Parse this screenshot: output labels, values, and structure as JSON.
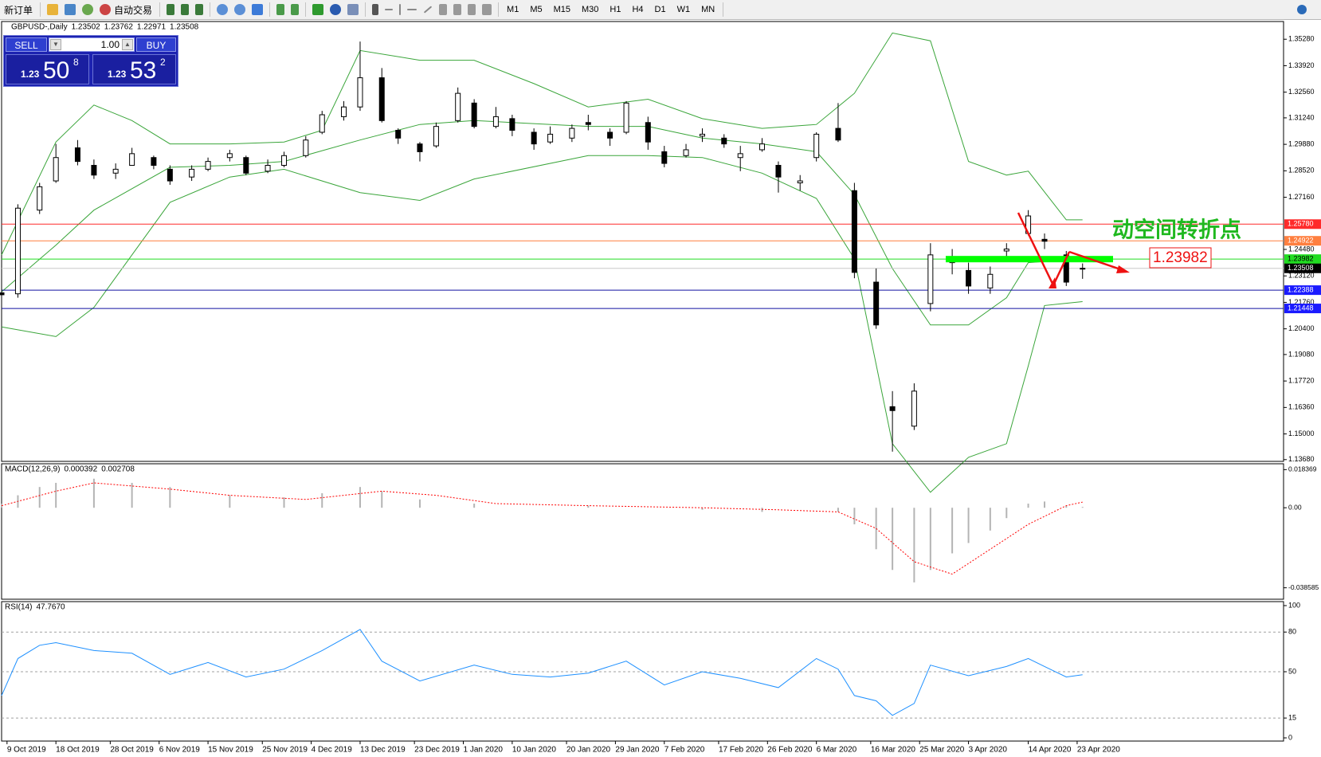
{
  "toolbar": {
    "new_order": "新订单",
    "auto_trading": "自动交易",
    "timeframes": [
      "M1",
      "M5",
      "M15",
      "M30",
      "H1",
      "H4",
      "D1",
      "W1",
      "MN"
    ]
  },
  "trade_panel": {
    "sell": "SELL",
    "lot": "1.00",
    "buy": "BUY",
    "sell_price": {
      "prefix": "1.23",
      "big": "50",
      "pip": "8"
    },
    "buy_price": {
      "prefix": "1.23",
      "big": "53",
      "pip": "2"
    }
  },
  "chart_data": [
    {
      "type": "candlestick",
      "title": "GBPUSD-,Daily",
      "header_values": [
        1.23502,
        1.23762,
        1.22971,
        1.23508
      ],
      "xlim": [
        "2019-10-08",
        "2020-05-31"
      ],
      "ylim": [
        1.1359,
        1.3619
      ],
      "yticks": [
        {
          "value": 1.3528,
          "label": "1.35280"
        },
        {
          "value": 1.3392,
          "label": "1.33920"
        },
        {
          "value": 1.3256,
          "label": "1.32560"
        },
        {
          "value": 1.3124,
          "label": "1.31240"
        },
        {
          "value": 1.2988,
          "label": "1.29880"
        },
        {
          "value": 1.2852,
          "label": "1.28520"
        },
        {
          "value": 1.2716,
          "label": "1.27160"
        },
        {
          "value": 1.2448,
          "label": "1.24480"
        },
        {
          "value": 1.2312,
          "label": "1.23120"
        },
        {
          "value": 1.2176,
          "label": "1.21760"
        },
        {
          "value": 1.204,
          "label": "1.20400"
        },
        {
          "value": 1.1908,
          "label": "1.19080"
        },
        {
          "value": 1.1772,
          "label": "1.17720"
        },
        {
          "value": 1.1636,
          "label": "1.16360"
        },
        {
          "value": 1.15,
          "label": "1.15000"
        },
        {
          "value": 1.1368,
          "label": "1.13680"
        }
      ],
      "x": [
        "2019-10-08",
        "2019-10-11",
        "2019-10-15",
        "2019-10-18",
        "2019-10-22",
        "2019-10-25",
        "2019-10-29",
        "2019-11-01",
        "2019-11-05",
        "2019-11-08",
        "2019-11-12",
        "2019-11-15",
        "2019-11-19",
        "2019-11-22",
        "2019-11-26",
        "2019-11-29",
        "2019-12-03",
        "2019-12-06",
        "2019-12-10",
        "2019-12-13",
        "2019-12-17",
        "2019-12-20",
        "2019-12-24",
        "2019-12-27",
        "2019-12-31",
        "2020-01-03",
        "2020-01-07",
        "2020-01-10",
        "2020-01-14",
        "2020-01-17",
        "2020-01-21",
        "2020-01-24",
        "2020-01-28",
        "2020-01-31",
        "2020-02-04",
        "2020-02-07",
        "2020-02-11",
        "2020-02-14",
        "2020-02-18",
        "2020-02-21",
        "2020-02-25",
        "2020-02-28",
        "2020-03-03",
        "2020-03-06",
        "2020-03-10",
        "2020-03-13",
        "2020-03-17",
        "2020-03-20",
        "2020-03-24",
        "2020-03-27",
        "2020-03-31",
        "2020-04-03",
        "2020-04-07",
        "2020-04-10",
        "2020-04-14",
        "2020-04-17",
        "2020-04-21",
        "2020-04-24"
      ],
      "open": [
        1.2225,
        1.222,
        1.265,
        1.28,
        1.297,
        1.288,
        1.284,
        1.288,
        1.292,
        1.286,
        1.282,
        1.286,
        1.292,
        1.292,
        1.285,
        1.288,
        1.293,
        1.305,
        1.313,
        1.318,
        1.333,
        1.306,
        1.299,
        1.298,
        1.311,
        1.32,
        1.308,
        1.312,
        1.305,
        1.3,
        1.302,
        1.31,
        1.305,
        1.305,
        1.31,
        1.295,
        1.293,
        1.303,
        1.302,
        1.292,
        1.296,
        1.288,
        1.279,
        1.292,
        1.307,
        1.275,
        1.228,
        1.164,
        1.154,
        1.217,
        1.238,
        1.234,
        1.225,
        1.244,
        1.253,
        1.25,
        1.242,
        1.235
      ],
      "high": [
        1.226,
        1.268,
        1.279,
        1.299,
        1.301,
        1.291,
        1.289,
        1.297,
        1.293,
        1.288,
        1.288,
        1.292,
        1.296,
        1.293,
        1.291,
        1.295,
        1.303,
        1.316,
        1.321,
        1.3516,
        1.338,
        1.307,
        1.3,
        1.31,
        1.328,
        1.322,
        1.318,
        1.314,
        1.307,
        1.308,
        1.309,
        1.314,
        1.307,
        1.321,
        1.313,
        1.298,
        1.299,
        1.307,
        1.304,
        1.298,
        1.302,
        1.29,
        1.283,
        1.305,
        1.32,
        1.279,
        1.235,
        1.172,
        1.176,
        1.248,
        1.245,
        1.238,
        1.236,
        1.248,
        1.265,
        1.253,
        1.244,
        1.2376
      ],
      "low": [
        1.22,
        1.22,
        1.263,
        1.279,
        1.288,
        1.281,
        1.281,
        1.288,
        1.286,
        1.278,
        1.28,
        1.285,
        1.29,
        1.283,
        1.284,
        1.287,
        1.292,
        1.304,
        1.311,
        1.316,
        1.31,
        1.299,
        1.29,
        1.297,
        1.31,
        1.307,
        1.307,
        1.303,
        1.296,
        1.299,
        1.3,
        1.306,
        1.298,
        1.304,
        1.296,
        1.287,
        1.292,
        1.3,
        1.297,
        1.285,
        1.295,
        1.274,
        1.275,
        1.29,
        1.3,
        1.23,
        1.204,
        1.1409,
        1.152,
        1.213,
        1.232,
        1.222,
        1.222,
        1.241,
        1.252,
        1.245,
        1.226,
        1.2297
      ],
      "close": [
        1.2215,
        1.266,
        1.277,
        1.292,
        1.29,
        1.283,
        1.286,
        1.294,
        1.288,
        1.28,
        1.286,
        1.29,
        1.294,
        1.284,
        1.288,
        1.293,
        1.301,
        1.314,
        1.318,
        1.333,
        1.311,
        1.302,
        1.295,
        1.308,
        1.325,
        1.308,
        1.313,
        1.306,
        1.299,
        1.304,
        1.307,
        1.309,
        1.302,
        1.32,
        1.3,
        1.289,
        1.296,
        1.304,
        1.299,
        1.294,
        1.299,
        1.282,
        1.28,
        1.304,
        1.301,
        1.233,
        1.206,
        1.162,
        1.172,
        1.242,
        1.241,
        1.226,
        1.232,
        1.245,
        1.262,
        1.249,
        1.228,
        1.2351
      ],
      "bands": [
        {
          "color": "#3aa53a",
          "x": [
            "2019-10-08",
            "2019-10-18",
            "2019-10-25",
            "2019-11-01",
            "2019-11-08",
            "2019-11-19",
            "2019-11-29",
            "2019-12-06",
            "2019-12-13",
            "2019-12-24",
            "2020-01-03",
            "2020-01-14",
            "2020-01-24",
            "2020-02-04",
            "2020-02-14",
            "2020-02-25",
            "2020-03-06",
            "2020-03-13",
            "2020-03-20",
            "2020-03-27",
            "2020-04-03",
            "2020-04-10",
            "2020-04-14",
            "2020-04-21",
            "2020-04-24"
          ],
          "values": [
            1.242,
            1.3,
            1.319,
            1.311,
            1.299,
            1.299,
            1.3,
            1.306,
            1.347,
            1.342,
            1.342,
            1.33,
            1.318,
            1.322,
            1.312,
            1.307,
            1.309,
            1.325,
            1.356,
            1.352,
            1.29,
            1.283,
            1.285,
            1.26,
            1.26
          ]
        },
        {
          "color": "#3aa53a",
          "x": [
            "2019-10-08",
            "2019-10-18",
            "2019-10-25",
            "2019-11-08",
            "2019-11-19",
            "2019-11-29",
            "2019-12-13",
            "2019-12-24",
            "2020-01-03",
            "2020-01-24",
            "2020-02-04",
            "2020-02-14",
            "2020-02-25",
            "2020-03-06",
            "2020-03-13",
            "2020-03-20",
            "2020-03-27",
            "2020-04-03",
            "2020-04-10",
            "2020-04-14",
            "2020-04-24"
          ],
          "values": [
            1.223,
            1.247,
            1.265,
            1.287,
            1.288,
            1.29,
            1.301,
            1.309,
            1.311,
            1.308,
            1.308,
            1.302,
            1.299,
            1.295,
            1.273,
            1.235,
            1.206,
            1.206,
            1.22,
            1.238,
            1.24
          ]
        },
        {
          "color": "#3aa53a",
          "x": [
            "2019-10-08",
            "2019-10-18",
            "2019-10-25",
            "2019-11-08",
            "2019-11-19",
            "2019-11-29",
            "2019-12-13",
            "2019-12-24",
            "2020-01-03",
            "2020-01-24",
            "2020-02-04",
            "2020-02-14",
            "2020-02-25",
            "2020-03-06",
            "2020-03-13",
            "2020-03-20",
            "2020-03-27",
            "2020-04-03",
            "2020-04-10",
            "2020-04-14",
            "2020-04-17",
            "2020-04-24"
          ],
          "values": [
            1.205,
            1.2,
            1.215,
            1.269,
            1.282,
            1.286,
            1.274,
            1.27,
            1.281,
            1.293,
            1.293,
            1.292,
            1.284,
            1.271,
            1.24,
            1.145,
            1.12,
            1.138,
            1.145,
            1.185,
            1.216,
            1.218
          ]
        }
      ],
      "levels": [
        {
          "value": 1.2578,
          "label": "1.25780",
          "color": "#ff2a2a",
          "text_color": "#ffffff"
        },
        {
          "value": 1.24922,
          "label": "1.24922",
          "color": "#ff7f3f",
          "text_color": "#ffffff"
        },
        {
          "value": 1.23982,
          "label": "1.23982",
          "color": "#22dd22",
          "text_color": "#000000"
        },
        {
          "value": 1.23508,
          "label": "1.23508",
          "color": "#000000",
          "line_color": "#c8c8c8",
          "text_color": "#ffffff"
        },
        {
          "value": 1.22388,
          "label": "1.22388",
          "color": "#1a1aff",
          "line_color": "#1010a0",
          "text_color": "#ffffff"
        },
        {
          "value": 1.21448,
          "label": "1.21448",
          "color": "#1a1aff",
          "line_color": "#1010a0",
          "text_color": "#ffffff"
        }
      ],
      "annotation": "动空间转折点",
      "callout": {
        "value": 1.23982,
        "label": "1.23982"
      }
    },
    {
      "type": "macd",
      "title": "MACD(12,26,9)",
      "header_values": [
        0.000392,
        0.002708
      ],
      "xlim": [
        "2019-10-08",
        "2020-05-31"
      ],
      "ylim": [
        -0.0441,
        0.0212
      ],
      "yticks": [
        0.018369,
        {
          "value": 0,
          "label": "0.00"
        },
        -0.038585
      ],
      "histogram": {
        "color": "#b4b4b4",
        "x": [
          "2019-10-08",
          "2019-10-11",
          "2019-10-15",
          "2019-10-18",
          "2019-10-25",
          "2019-11-01",
          "2019-11-08",
          "2019-11-19",
          "2019-11-29",
          "2019-12-06",
          "2019-12-13",
          "2019-12-17",
          "2019-12-24",
          "2020-01-03",
          "2020-01-14",
          "2020-01-24",
          "2020-02-04",
          "2020-02-14",
          "2020-02-25",
          "2020-03-06",
          "2020-03-10",
          "2020-03-13",
          "2020-03-17",
          "2020-03-20",
          "2020-03-24",
          "2020-03-27",
          "2020-03-31",
          "2020-04-03",
          "2020-04-07",
          "2020-04-10",
          "2020-04-14",
          "2020-04-17",
          "2020-04-21",
          "2020-04-24"
        ],
        "values": [
          0.002,
          0.006,
          0.01,
          0.012,
          0.014,
          0.012,
          0.01,
          0.006,
          0.005,
          0.007,
          0.01,
          0.008,
          0.004,
          0.002,
          0.0,
          0.001,
          0.0,
          -0.001,
          -0.002,
          0.0,
          -0.002,
          -0.008,
          -0.02,
          -0.03,
          -0.036,
          -0.03,
          -0.022,
          -0.017,
          -0.011,
          -0.005,
          0.002,
          0.003,
          0.001,
          0.000392
        ]
      },
      "signal": {
        "color": "#ff0000",
        "x": [
          "2019-10-08",
          "2019-10-18",
          "2019-10-25",
          "2019-11-08",
          "2019-11-19",
          "2019-12-03",
          "2019-12-17",
          "2019-12-27",
          "2020-01-07",
          "2020-01-24",
          "2020-02-14",
          "2020-02-28",
          "2020-03-10",
          "2020-03-17",
          "2020-03-24",
          "2020-03-31",
          "2020-04-07",
          "2020-04-14",
          "2020-04-21",
          "2020-04-24"
        ],
        "values": [
          0.001,
          0.008,
          0.012,
          0.009,
          0.006,
          0.004,
          0.008,
          0.006,
          0.002,
          0.001,
          0.0,
          -0.001,
          -0.002,
          -0.01,
          -0.026,
          -0.032,
          -0.02,
          -0.008,
          0.001,
          0.002708
        ]
      }
    },
    {
      "type": "rsi",
      "title": "RSI(14)",
      "value_label": "47.7670",
      "xlim": [
        "2019-10-08",
        "2020-05-31"
      ],
      "ylim": [
        0,
        100
      ],
      "yticks": [
        100,
        80,
        50,
        15,
        0
      ],
      "color": "#1e90ff",
      "x": [
        "2019-10-08",
        "2019-10-11",
        "2019-10-15",
        "2019-10-18",
        "2019-10-25",
        "2019-11-01",
        "2019-11-08",
        "2019-11-15",
        "2019-11-22",
        "2019-11-29",
        "2019-12-06",
        "2019-12-13",
        "2019-12-17",
        "2019-12-24",
        "2020-01-03",
        "2020-01-10",
        "2020-01-17",
        "2020-01-24",
        "2020-01-31",
        "2020-02-07",
        "2020-02-14",
        "2020-02-21",
        "2020-02-28",
        "2020-03-06",
        "2020-03-10",
        "2020-03-13",
        "2020-03-17",
        "2020-03-20",
        "2020-03-24",
        "2020-03-27",
        "2020-04-03",
        "2020-04-10",
        "2020-04-14",
        "2020-04-17",
        "2020-04-21",
        "2020-04-24"
      ],
      "values": [
        32,
        60,
        70,
        72,
        66,
        64,
        48,
        57,
        46,
        52,
        66,
        82,
        58,
        43,
        55,
        48,
        46,
        49,
        58,
        40,
        50,
        45,
        38,
        60,
        52,
        32,
        28,
        17,
        26,
        55,
        47,
        54,
        60,
        54,
        46,
        47.767
      ],
      "xticks": [
        {
          "value": "2019-10-09",
          "label": "9 Oct 2019"
        },
        {
          "value": "2019-10-18",
          "label": "18 Oct 2019"
        },
        {
          "value": "2019-10-28",
          "label": "28 Oct 2019"
        },
        {
          "value": "2019-11-06",
          "label": "6 Nov 2019"
        },
        {
          "value": "2019-11-15",
          "label": "15 Nov 2019"
        },
        {
          "value": "2019-11-25",
          "label": "25 Nov 2019"
        },
        {
          "value": "2019-12-04",
          "label": "4 Dec 2019"
        },
        {
          "value": "2019-12-13",
          "label": "13 Dec 2019"
        },
        {
          "value": "2019-12-23",
          "label": "23 Dec 2019"
        },
        {
          "value": "2020-01-01",
          "label": "1 Jan 2020"
        },
        {
          "value": "2020-01-10",
          "label": "10 Jan 2020"
        },
        {
          "value": "2020-01-20",
          "label": "20 Jan 2020"
        },
        {
          "value": "2020-01-29",
          "label": "29 Jan 2020"
        },
        {
          "value": "2020-02-07",
          "label": "7 Feb 2020"
        },
        {
          "value": "2020-02-17",
          "label": "17 Feb 2020"
        },
        {
          "value": "2020-02-26",
          "label": "26 Feb 2020"
        },
        {
          "value": "2020-03-06",
          "label": "6 Mar 2020"
        },
        {
          "value": "2020-03-16",
          "label": "16 Mar 2020"
        },
        {
          "value": "2020-03-25",
          "label": "25 Mar 2020"
        },
        {
          "value": "2020-04-03",
          "label": "3 Apr 2020"
        },
        {
          "value": "2020-04-14",
          "label": "14 Apr 2020"
        },
        {
          "value": "2020-04-23",
          "label": "23 Apr 2020"
        }
      ]
    }
  ]
}
